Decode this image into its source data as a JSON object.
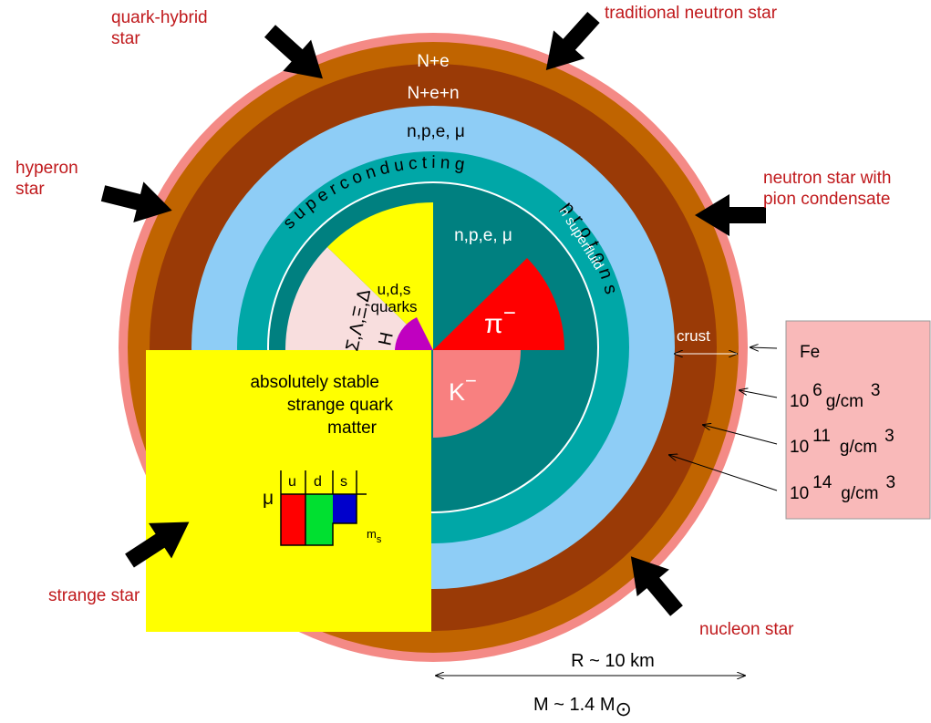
{
  "colors": {
    "outer_ring": "#f48a86",
    "crust_outer": "#c06400",
    "crust_inner": "#9a3a06",
    "light_blue": "#8ecdf6",
    "teal_outer": "#00a7a7",
    "teal_inner": "#008080",
    "yellow": "#ffff00",
    "pink_sector": "#f8dede",
    "magenta": "#c000c0",
    "pion_red": "#ff0000",
    "kaon_pink": "#f88080",
    "fe_box": "#f9b9b9",
    "label_red": "#c0191c",
    "quark_u": "#ff0000",
    "quark_d": "#00e030",
    "quark_s": "#0000cc"
  },
  "star_types": {
    "quark_hybrid": [
      "quark-hybrid",
      "star"
    ],
    "traditional": "traditional neutron star",
    "hyperon": [
      "hyperon",
      "star"
    ],
    "pion": [
      "neutron star with",
      "pion condensate"
    ],
    "strange": "strange star",
    "nucleon": "nucleon star"
  },
  "layers": {
    "n_e": "N+e",
    "n_e_n": "N+e+n",
    "npe_mu_outer": "n,p,e,  μ",
    "npe_mu_inner": "n,p,e,  μ",
    "superconducting": "superconducting",
    "protons": "protons",
    "n_superfluid": "n superfluid",
    "crust": "crust"
  },
  "core": {
    "uds_quarks": [
      "u,d,s",
      "quarks"
    ],
    "hyperons": "Σ,Λ,Ξ,Δ",
    "h_dibaryon": "H",
    "pion": "π",
    "pion_charge": "−",
    "kaon": "K",
    "kaon_charge": "−",
    "strange_matter": [
      "absolutely stable",
      "strange quark",
      "matter"
    ]
  },
  "quark_levels": {
    "mu": "μ",
    "u": "u",
    "d": "d",
    "s": "s",
    "ms": "m",
    "ms_sub": "s"
  },
  "densities": {
    "fe": "Fe",
    "rows": [
      {
        "base": "10",
        "exp": "6",
        "unit": "g/cm",
        "unit_exp": "3"
      },
      {
        "base": "10",
        "exp": "11",
        "unit": "g/cm",
        "unit_exp": "3"
      },
      {
        "base": "10",
        "exp": "14",
        "unit": "g/cm",
        "unit_exp": "3"
      }
    ]
  },
  "scale": {
    "radius": "R ~ 10 km",
    "mass": "M ~ 1.4 M",
    "sun_symbol": "⊙"
  }
}
